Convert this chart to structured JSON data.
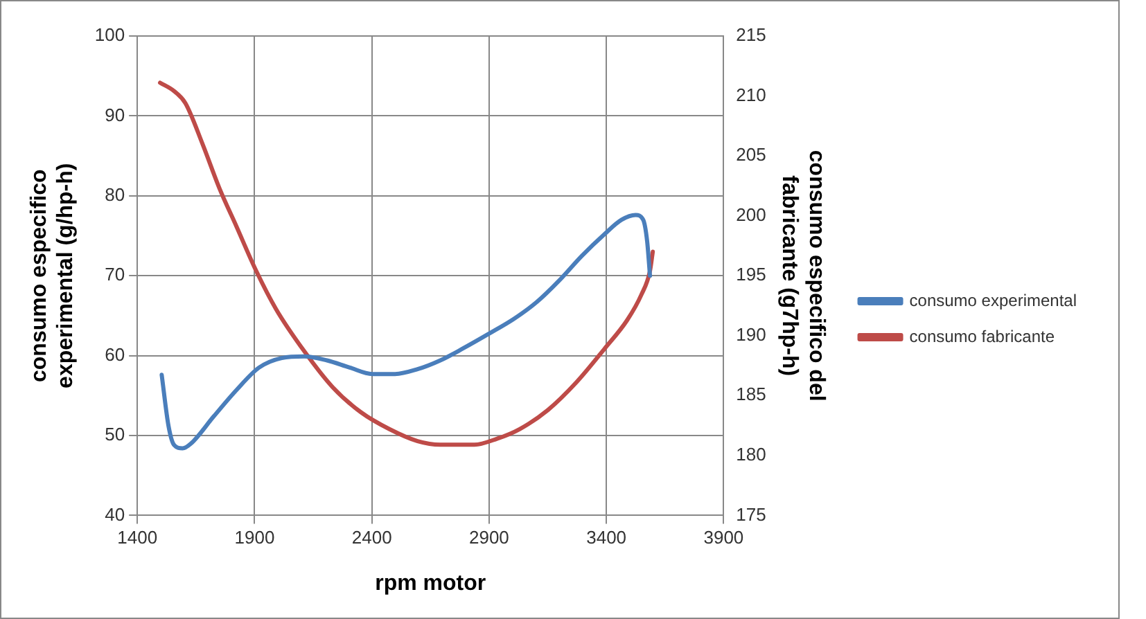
{
  "chart_data": {
    "type": "line",
    "xlabel": "rpm motor",
    "ylabel": "consumo especifico experimental (g/hp-h)",
    "y2label": "consumo especifico del fabricante (g7hp-h)",
    "xlim": [
      1400,
      3900
    ],
    "xticks": [
      1400,
      1900,
      2400,
      2900,
      3400,
      3900
    ],
    "ylim": [
      40,
      100
    ],
    "yticks": [
      40,
      50,
      60,
      70,
      80,
      90,
      100
    ],
    "y2lim": [
      175,
      215
    ],
    "y2ticks": [
      175,
      180,
      185,
      190,
      195,
      200,
      205,
      210,
      215
    ],
    "grid": true,
    "legend": "right",
    "marker": "none",
    "line_style": "solid",
    "series": [
      {
        "name": "consumo experimental",
        "color": "#4a7ebb",
        "x": [
          1504,
          1533,
          1557,
          1593,
          1629,
          1726,
          1823,
          1919,
          2016,
          2112,
          2209,
          2306,
          2402,
          2499,
          2595,
          2692,
          2789,
          2897,
          3006,
          3103,
          3199,
          3296,
          3392,
          3465,
          3525,
          3557,
          3574,
          3586
        ],
        "values": [
          57.6,
          51.2,
          48.8,
          48.4,
          49.0,
          52.4,
          55.7,
          58.5,
          59.7,
          59.9,
          59.4,
          58.5,
          57.7,
          57.7,
          58.3,
          59.4,
          60.9,
          62.7,
          64.6,
          66.7,
          69.4,
          72.5,
          75.2,
          77.0,
          77.6,
          77.0,
          74.3,
          70.0
        ]
      },
      {
        "name": "consumo fabricante",
        "color": "#be4b48",
        "axis": "y2",
        "x": [
          1497,
          1557,
          1605,
          1678,
          1750,
          1823,
          1907,
          1992,
          2112,
          2233,
          2354,
          2475,
          2595,
          2692,
          2837,
          2934,
          3030,
          3151,
          3272,
          3392,
          3489,
          3549,
          3586,
          3598
        ],
        "values": [
          211.1,
          210.4,
          209.4,
          206.0,
          202.3,
          199.1,
          195.4,
          192.2,
          188.7,
          185.7,
          183.6,
          182.2,
          181.2,
          180.9,
          180.9,
          181.4,
          182.2,
          183.8,
          186.1,
          188.9,
          191.3,
          193.4,
          195.4,
          197.0
        ]
      }
    ]
  }
}
